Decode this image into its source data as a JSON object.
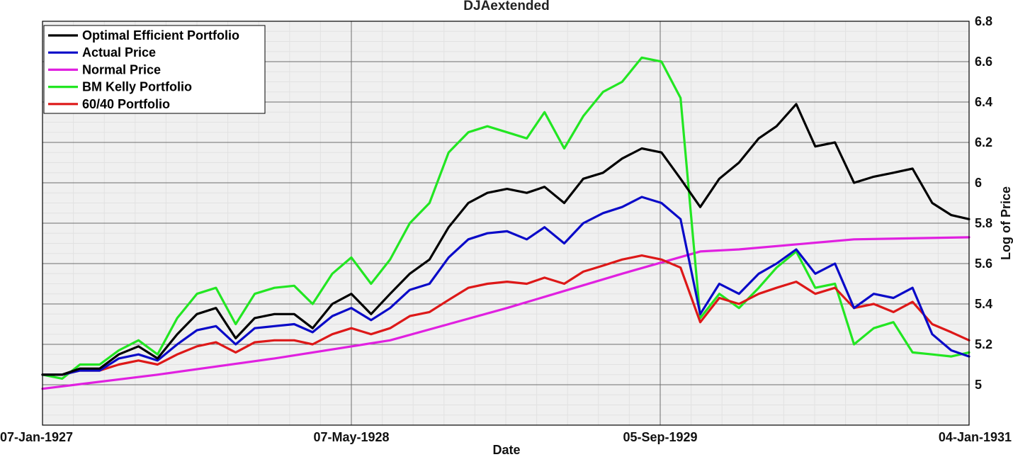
{
  "chart_data": {
    "type": "line",
    "title": "DJAextended",
    "xlabel": "Date",
    "ylabel": "Log of Price",
    "x_ticks": [
      "07-Jan-1927",
      "07-May-1928",
      "05-Sep-1929",
      "04-Jan-1931"
    ],
    "xlim": [
      "1927-01-07",
      "1931-01-04"
    ],
    "ylim": [
      4.8,
      6.8
    ],
    "y_ticks": [
      "5",
      "5.2",
      "5.4",
      "5.6",
      "5.8",
      "6",
      "6.2",
      "6.4",
      "6.6",
      "6.8"
    ],
    "y_axis_side": "right",
    "grid": true,
    "legend_position": "top-left",
    "series": [
      {
        "name": "Optimal Efficient Portfolio",
        "color": "#000000",
        "points": [
          [
            "1927-01-07",
            5.05
          ],
          [
            "1927-02-07",
            5.05
          ],
          [
            "1927-03-07",
            5.08
          ],
          [
            "1927-04-07",
            5.08
          ],
          [
            "1927-05-07",
            5.15
          ],
          [
            "1927-06-07",
            5.19
          ],
          [
            "1927-07-07",
            5.13
          ],
          [
            "1927-08-07",
            5.25
          ],
          [
            "1927-09-07",
            5.35
          ],
          [
            "1927-10-07",
            5.38
          ],
          [
            "1927-11-07",
            5.23
          ],
          [
            "1927-12-07",
            5.33
          ],
          [
            "1928-01-07",
            5.35
          ],
          [
            "1928-02-07",
            5.35
          ],
          [
            "1928-03-07",
            5.28
          ],
          [
            "1928-04-07",
            5.4
          ],
          [
            "1928-05-07",
            5.45
          ],
          [
            "1928-06-07",
            5.35
          ],
          [
            "1928-07-07",
            5.45
          ],
          [
            "1928-08-07",
            5.55
          ],
          [
            "1928-09-07",
            5.62
          ],
          [
            "1928-10-07",
            5.78
          ],
          [
            "1928-11-07",
            5.9
          ],
          [
            "1928-12-07",
            5.95
          ],
          [
            "1929-01-07",
            5.97
          ],
          [
            "1929-02-07",
            5.95
          ],
          [
            "1929-03-07",
            5.98
          ],
          [
            "1929-04-07",
            5.9
          ],
          [
            "1929-05-07",
            6.02
          ],
          [
            "1929-06-07",
            6.05
          ],
          [
            "1929-07-07",
            6.12
          ],
          [
            "1929-08-07",
            6.17
          ],
          [
            "1929-09-07",
            6.15
          ],
          [
            "1929-10-07",
            6.02
          ],
          [
            "1929-11-07",
            5.88
          ],
          [
            "1929-12-07",
            6.02
          ],
          [
            "1930-01-07",
            6.1
          ],
          [
            "1930-02-07",
            6.22
          ],
          [
            "1930-03-07",
            6.28
          ],
          [
            "1930-04-07",
            6.39
          ],
          [
            "1930-05-07",
            6.18
          ],
          [
            "1930-06-07",
            6.2
          ],
          [
            "1930-07-07",
            6.0
          ],
          [
            "1930-08-07",
            6.03
          ],
          [
            "1930-09-07",
            6.05
          ],
          [
            "1930-10-07",
            6.07
          ],
          [
            "1930-11-07",
            5.9
          ],
          [
            "1930-12-07",
            5.84
          ],
          [
            "1931-01-04",
            5.82
          ]
        ]
      },
      {
        "name": "Actual Price",
        "color": "#0a0ac8",
        "points": [
          [
            "1927-01-07",
            5.05
          ],
          [
            "1927-02-07",
            5.05
          ],
          [
            "1927-03-07",
            5.07
          ],
          [
            "1927-04-07",
            5.07
          ],
          [
            "1927-05-07",
            5.13
          ],
          [
            "1927-06-07",
            5.15
          ],
          [
            "1927-07-07",
            5.12
          ],
          [
            "1927-08-07",
            5.2
          ],
          [
            "1927-09-07",
            5.27
          ],
          [
            "1927-10-07",
            5.29
          ],
          [
            "1927-11-07",
            5.2
          ],
          [
            "1927-12-07",
            5.28
          ],
          [
            "1928-01-07",
            5.29
          ],
          [
            "1928-02-07",
            5.3
          ],
          [
            "1928-03-07",
            5.26
          ],
          [
            "1928-04-07",
            5.34
          ],
          [
            "1928-05-07",
            5.38
          ],
          [
            "1928-06-07",
            5.32
          ],
          [
            "1928-07-07",
            5.38
          ],
          [
            "1928-08-07",
            5.47
          ],
          [
            "1928-09-07",
            5.5
          ],
          [
            "1928-10-07",
            5.63
          ],
          [
            "1928-11-07",
            5.72
          ],
          [
            "1928-12-07",
            5.75
          ],
          [
            "1929-01-07",
            5.76
          ],
          [
            "1929-02-07",
            5.72
          ],
          [
            "1929-03-07",
            5.78
          ],
          [
            "1929-04-07",
            5.7
          ],
          [
            "1929-05-07",
            5.8
          ],
          [
            "1929-06-07",
            5.85
          ],
          [
            "1929-07-07",
            5.88
          ],
          [
            "1929-08-07",
            5.93
          ],
          [
            "1929-09-07",
            5.9
          ],
          [
            "1929-10-07",
            5.82
          ],
          [
            "1929-11-07",
            5.35
          ],
          [
            "1929-12-07",
            5.5
          ],
          [
            "1930-01-07",
            5.45
          ],
          [
            "1930-02-07",
            5.55
          ],
          [
            "1930-03-07",
            5.6
          ],
          [
            "1930-04-07",
            5.67
          ],
          [
            "1930-05-07",
            5.55
          ],
          [
            "1930-06-07",
            5.6
          ],
          [
            "1930-07-07",
            5.38
          ],
          [
            "1930-08-07",
            5.45
          ],
          [
            "1930-09-07",
            5.43
          ],
          [
            "1930-10-07",
            5.48
          ],
          [
            "1930-11-07",
            5.25
          ],
          [
            "1930-12-07",
            5.17
          ],
          [
            "1931-01-04",
            5.14
          ]
        ]
      },
      {
        "name": "Normal Price",
        "color": "#e020e0",
        "points": [
          [
            "1927-01-07",
            4.98
          ],
          [
            "1927-07-07",
            5.05
          ],
          [
            "1928-01-07",
            5.13
          ],
          [
            "1928-07-07",
            5.22
          ],
          [
            "1929-01-07",
            5.38
          ],
          [
            "1929-07-07",
            5.55
          ],
          [
            "1929-11-07",
            5.66
          ],
          [
            "1930-01-07",
            5.67
          ],
          [
            "1930-07-07",
            5.72
          ],
          [
            "1931-01-04",
            5.73
          ]
        ]
      },
      {
        "name": "BM Kelly Portfolio",
        "color": "#22e622",
        "points": [
          [
            "1927-01-07",
            5.05
          ],
          [
            "1927-02-07",
            5.03
          ],
          [
            "1927-03-07",
            5.1
          ],
          [
            "1927-04-07",
            5.1
          ],
          [
            "1927-05-07",
            5.17
          ],
          [
            "1927-06-07",
            5.22
          ],
          [
            "1927-07-07",
            5.15
          ],
          [
            "1927-08-07",
            5.33
          ],
          [
            "1927-09-07",
            5.45
          ],
          [
            "1927-10-07",
            5.48
          ],
          [
            "1927-11-07",
            5.3
          ],
          [
            "1927-12-07",
            5.45
          ],
          [
            "1928-01-07",
            5.48
          ],
          [
            "1928-02-07",
            5.49
          ],
          [
            "1928-03-07",
            5.4
          ],
          [
            "1928-04-07",
            5.55
          ],
          [
            "1928-05-07",
            5.63
          ],
          [
            "1928-06-07",
            5.5
          ],
          [
            "1928-07-07",
            5.62
          ],
          [
            "1928-08-07",
            5.8
          ],
          [
            "1928-09-07",
            5.9
          ],
          [
            "1928-10-07",
            6.15
          ],
          [
            "1928-11-07",
            6.25
          ],
          [
            "1928-12-07",
            6.28
          ],
          [
            "1929-01-07",
            6.25
          ],
          [
            "1929-02-07",
            6.22
          ],
          [
            "1929-03-07",
            6.35
          ],
          [
            "1929-04-07",
            6.17
          ],
          [
            "1929-05-07",
            6.33
          ],
          [
            "1929-06-07",
            6.45
          ],
          [
            "1929-07-07",
            6.5
          ],
          [
            "1929-08-07",
            6.62
          ],
          [
            "1929-09-07",
            6.6
          ],
          [
            "1929-10-07",
            6.42
          ],
          [
            "1929-11-07",
            5.33
          ],
          [
            "1929-12-07",
            5.45
          ],
          [
            "1930-01-07",
            5.38
          ],
          [
            "1930-02-07",
            5.48
          ],
          [
            "1930-03-07",
            5.58
          ],
          [
            "1930-04-07",
            5.66
          ],
          [
            "1930-05-07",
            5.48
          ],
          [
            "1930-06-07",
            5.5
          ],
          [
            "1930-07-07",
            5.2
          ],
          [
            "1930-08-07",
            5.28
          ],
          [
            "1930-09-07",
            5.31
          ],
          [
            "1930-10-07",
            5.16
          ],
          [
            "1930-11-07",
            5.15
          ],
          [
            "1930-12-07",
            5.14
          ],
          [
            "1931-01-04",
            5.16
          ]
        ]
      },
      {
        "name": "60/40 Portfolio",
        "color": "#dd1818",
        "points": [
          [
            "1927-01-07",
            5.05
          ],
          [
            "1927-02-07",
            5.05
          ],
          [
            "1927-03-07",
            5.07
          ],
          [
            "1927-04-07",
            5.07
          ],
          [
            "1927-05-07",
            5.1
          ],
          [
            "1927-06-07",
            5.12
          ],
          [
            "1927-07-07",
            5.1
          ],
          [
            "1927-08-07",
            5.15
          ],
          [
            "1927-09-07",
            5.19
          ],
          [
            "1927-10-07",
            5.21
          ],
          [
            "1927-11-07",
            5.16
          ],
          [
            "1927-12-07",
            5.21
          ],
          [
            "1928-01-07",
            5.22
          ],
          [
            "1928-02-07",
            5.22
          ],
          [
            "1928-03-07",
            5.2
          ],
          [
            "1928-04-07",
            5.25
          ],
          [
            "1928-05-07",
            5.28
          ],
          [
            "1928-06-07",
            5.25
          ],
          [
            "1928-07-07",
            5.28
          ],
          [
            "1928-08-07",
            5.34
          ],
          [
            "1928-09-07",
            5.36
          ],
          [
            "1928-10-07",
            5.42
          ],
          [
            "1928-11-07",
            5.48
          ],
          [
            "1928-12-07",
            5.5
          ],
          [
            "1929-01-07",
            5.51
          ],
          [
            "1929-02-07",
            5.5
          ],
          [
            "1929-03-07",
            5.53
          ],
          [
            "1929-04-07",
            5.5
          ],
          [
            "1929-05-07",
            5.56
          ],
          [
            "1929-06-07",
            5.59
          ],
          [
            "1929-07-07",
            5.62
          ],
          [
            "1929-08-07",
            5.64
          ],
          [
            "1929-09-07",
            5.62
          ],
          [
            "1929-10-07",
            5.58
          ],
          [
            "1929-11-07",
            5.31
          ],
          [
            "1929-12-07",
            5.43
          ],
          [
            "1930-01-07",
            5.4
          ],
          [
            "1930-02-07",
            5.45
          ],
          [
            "1930-03-07",
            5.48
          ],
          [
            "1930-04-07",
            5.51
          ],
          [
            "1930-05-07",
            5.45
          ],
          [
            "1930-06-07",
            5.48
          ],
          [
            "1930-07-07",
            5.38
          ],
          [
            "1930-08-07",
            5.4
          ],
          [
            "1930-09-07",
            5.36
          ],
          [
            "1930-10-07",
            5.41
          ],
          [
            "1930-11-07",
            5.3
          ],
          [
            "1930-12-07",
            5.26
          ],
          [
            "1931-01-04",
            5.22
          ]
        ]
      }
    ]
  }
}
